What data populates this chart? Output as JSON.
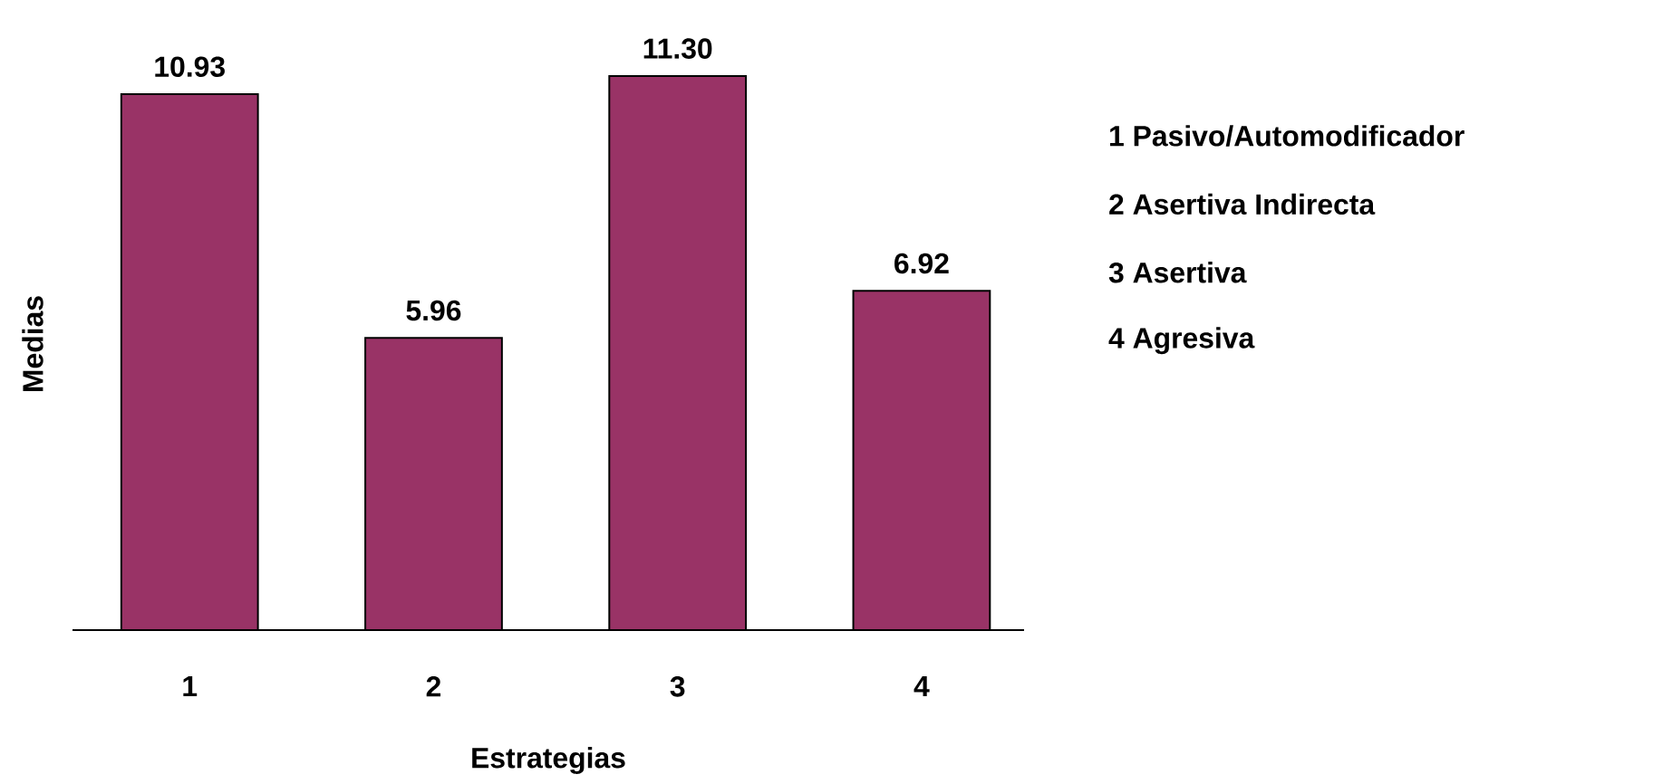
{
  "chart_data": {
    "type": "bar",
    "xlabel": "Estrategias",
    "ylabel": "Medias",
    "categories": [
      "1",
      "2",
      "3",
      "4"
    ],
    "values": [
      10.93,
      5.96,
      11.3,
      6.92
    ],
    "value_labels": [
      "10.93",
      "5.96",
      "11.30",
      "6.92"
    ],
    "color": "#993366",
    "tick_labels": "x",
    "annotations": [
      "1 Pasivo/Automodificador",
      "2 Asertiva Indirecta",
      "3 Asertiva",
      "4 Agresiva"
    ]
  }
}
